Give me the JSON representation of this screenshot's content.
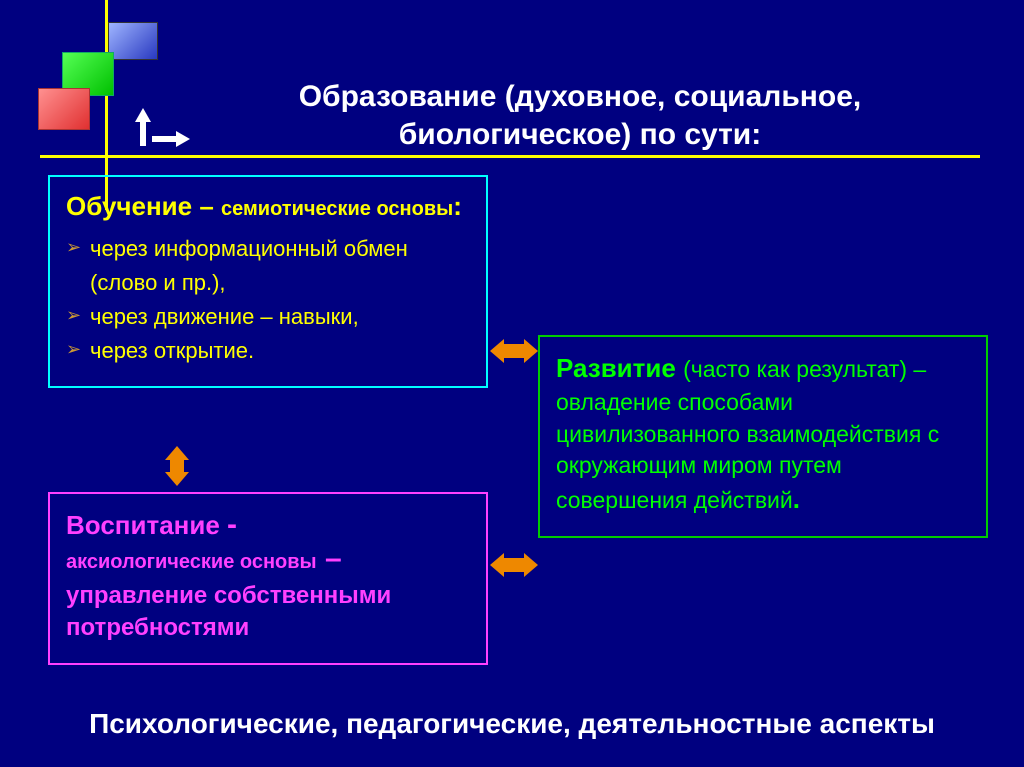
{
  "background_color": "#000080",
  "axis_color": "#ffff00",
  "title": "Образование (духовное, социальное, биологическое) по сути:",
  "title_color": "#ffffff",
  "title_fontsize": 30,
  "decor_squares": [
    {
      "color_from": "#9fb5ff",
      "color_to": "#2838c0",
      "name": "blue"
    },
    {
      "color_from": "#55ff55",
      "color_to": "#00c000",
      "name": "green"
    },
    {
      "color_from": "#ff9090",
      "color_to": "#e03030",
      "name": "red"
    }
  ],
  "boxes": {
    "learning": {
      "border_color": "#00ffff",
      "text_color": "#ffff00",
      "heading_main": "Обучение – ",
      "heading_sub": "семиотические основы",
      "heading_punct": ":",
      "bullet_marker_color": "#cc9933",
      "items": [
        "через информационный обмен (слово и пр.),",
        "через движение – навыки,",
        "через открытие."
      ]
    },
    "upbringing": {
      "border_color": "#ff40ff",
      "text_color": "#ff40ff",
      "line1a": "Воспитание  ",
      "line1b": "-",
      "line2": "аксиологические основы",
      "line2_punct": " –",
      "line3": "управление собственными потребностями"
    },
    "development": {
      "border_color": "#00cc00",
      "text_color": "#00ff00",
      "heading": "Развитие ",
      "body": "(часто как результат) – овладение способами цивилизованного взаимодействия с окружающим миром путем совершения действий",
      "end_punct": "."
    }
  },
  "arrows": {
    "color": "#ee8800",
    "connections": [
      {
        "from": "learning",
        "to": "development",
        "type": "bidirectional-h"
      },
      {
        "from": "upbringing",
        "to": "development",
        "type": "bidirectional-h"
      },
      {
        "from": "learning",
        "to": "upbringing",
        "type": "bidirectional-v"
      }
    ]
  },
  "footer": "Психологические, педагогические, деятельностные аспекты",
  "footer_color": "#ffffff",
  "footer_fontsize": 28
}
